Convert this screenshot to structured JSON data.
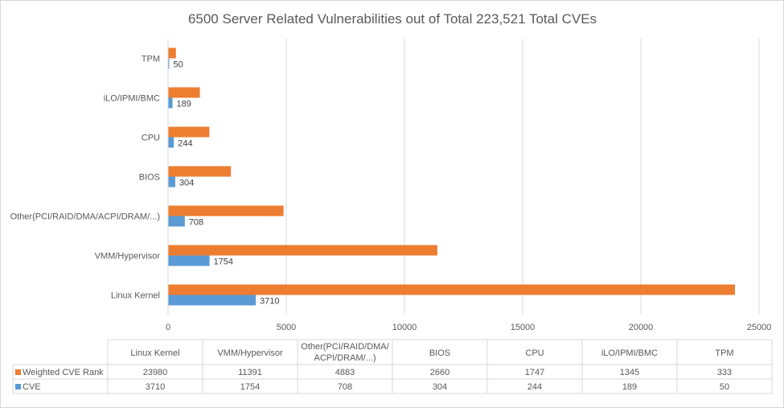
{
  "chart_data": {
    "type": "bar",
    "orientation": "horizontal",
    "title": "6500 Server Related Vulnerabilities out of Total 223,521 Total CVEs",
    "categories": [
      "Linux Kernel",
      "VMM/Hypervisor",
      "Other(PCI/RAID/DMA/ACPI/DRAM/...)",
      "BIOS",
      "CPU",
      "iLO/IPMI/BMC",
      "TPM"
    ],
    "table_headers": [
      [
        "Linux Kernel"
      ],
      [
        "VMM/Hypervisor"
      ],
      [
        "Other(PCI/RAID/DMA/",
        "ACPI/DRAM/...)"
      ],
      [
        "BIOS"
      ],
      [
        "CPU"
      ],
      [
        "iLO/IPMI/BMC"
      ],
      [
        "TPM"
      ]
    ],
    "series": [
      {
        "name": "Weighted CVE Rank",
        "color": "#ed7d31",
        "values": [
          23980,
          11391,
          4883,
          2660,
          1747,
          1345,
          333
        ],
        "data_labels": false
      },
      {
        "name": "CVE",
        "color": "#5b9bd5",
        "values": [
          3710,
          1754,
          708,
          304,
          244,
          189,
          50
        ],
        "data_labels": true
      }
    ],
    "xlim": [
      0,
      25000
    ],
    "xticks": [
      0,
      5000,
      10000,
      15000,
      20000,
      25000
    ],
    "grid": true,
    "legend": "data-table-below"
  }
}
